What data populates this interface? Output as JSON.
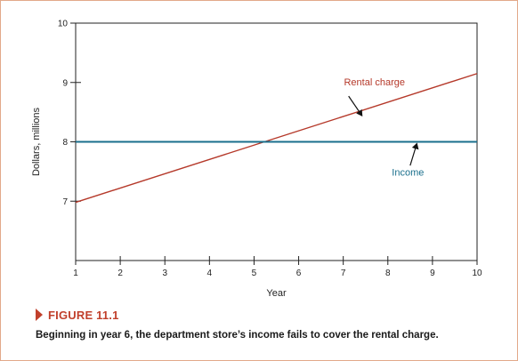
{
  "chart_data": {
    "type": "line",
    "xlabel": "Year",
    "ylabel": "Dollars, millions",
    "xlim": [
      1,
      10
    ],
    "ylim": [
      6,
      10
    ],
    "xticks": [
      1,
      2,
      3,
      4,
      5,
      6,
      7,
      8,
      9,
      10
    ],
    "yticks": [
      7,
      8,
      9,
      10
    ],
    "grid": false,
    "series": [
      {
        "name": "Rental charge",
        "color": "#b5392a",
        "x": [
          1,
          10
        ],
        "y": [
          6.98,
          9.15
        ]
      },
      {
        "name": "Income",
        "color": "#1a6f8c",
        "x": [
          1,
          10
        ],
        "y": [
          8.0,
          8.0
        ]
      }
    ]
  },
  "figure": {
    "title": "FIGURE 11.1",
    "caption": "Beginning in year 6, the department store’s income fails to cover the rental charge."
  },
  "colors": {
    "accent": "#c1402c",
    "frame": "#e2a98a"
  }
}
